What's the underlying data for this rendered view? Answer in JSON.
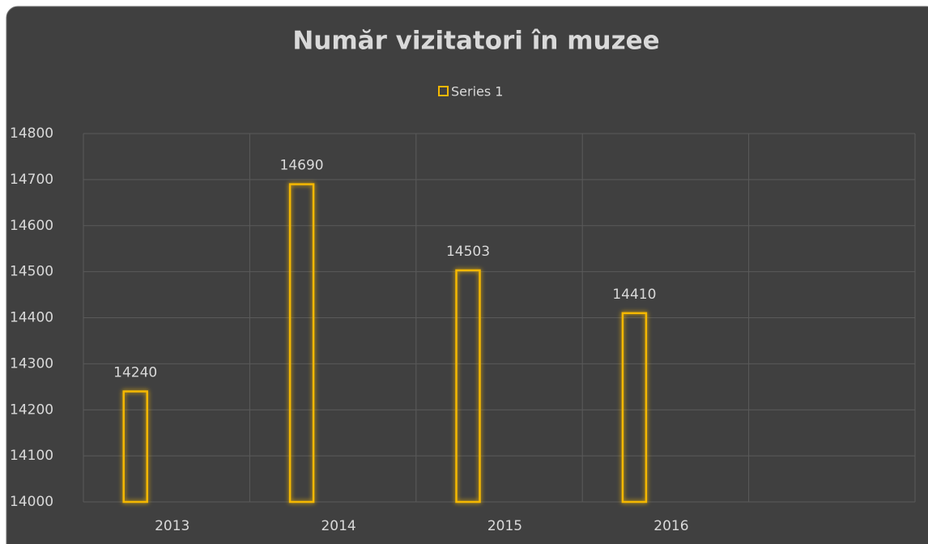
{
  "chart_data": {
    "type": "bar",
    "title": "Număr vizitatori în muzee",
    "categories": [
      "2013",
      "2014",
      "2015",
      "2016",
      null
    ],
    "series": [
      {
        "name": "Series 1",
        "color": "#f5b800",
        "values": [
          14240,
          14690,
          14503,
          14410,
          null
        ]
      }
    ],
    "ylim": [
      14000,
      14800
    ],
    "yticks": [
      14000,
      14100,
      14200,
      14300,
      14400,
      14500,
      14600,
      14700,
      14800
    ],
    "grid": true,
    "legend": "top"
  }
}
